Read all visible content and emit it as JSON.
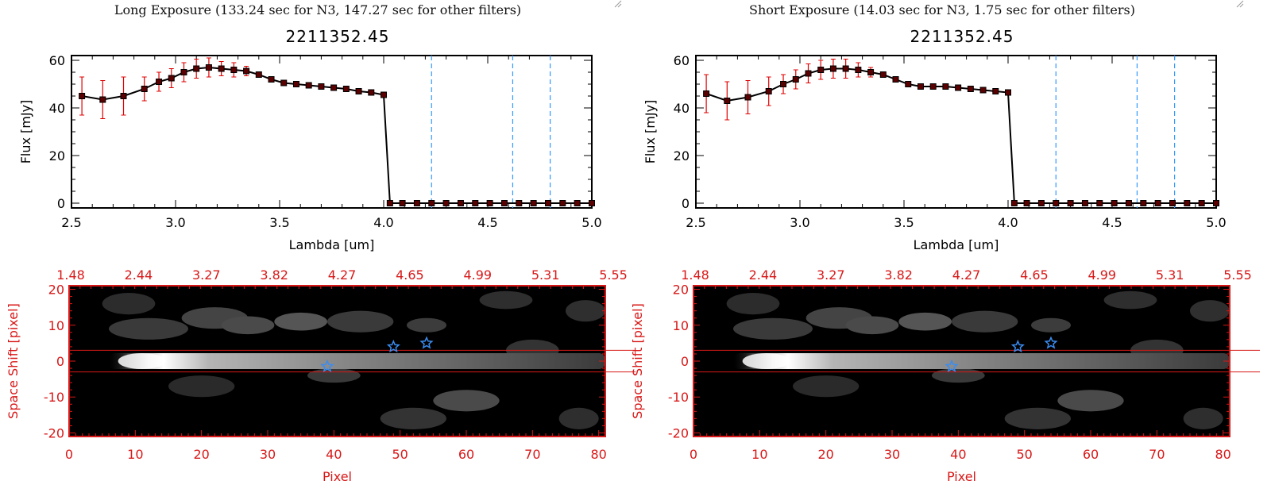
{
  "panels": [
    {
      "header": "Long Exposure (133.24 sec for N3, 147.27 sec for other filters)",
      "title": "2211352.45"
    },
    {
      "header": "Short Exposure (14.03 sec for N3, 1.75 sec for other filters)",
      "title": "2211352.45"
    }
  ],
  "colors": {
    "spectrum_line": "#000000",
    "error_bar": "#e00000",
    "marker": "#5a0000",
    "vline": "#3399ff",
    "image_axis": "#d81818",
    "star": "#3a8cf0"
  },
  "chart_data": [
    {
      "type": "line",
      "title": "2211352.45",
      "xlabel": "Lambda [um]",
      "ylabel": "Flux [mJy]",
      "xlim": [
        2.5,
        5.0
      ],
      "ylim": [
        -2,
        62
      ],
      "xticks": [
        "2.5",
        "3.0",
        "3.5",
        "4.0",
        "4.5",
        "5.0"
      ],
      "yticks": [
        "0",
        "20",
        "40",
        "60"
      ],
      "x": [
        2.55,
        2.65,
        2.75,
        2.85,
        2.92,
        2.98,
        3.04,
        3.1,
        3.16,
        3.22,
        3.28,
        3.34,
        3.4,
        3.46,
        3.52,
        3.58,
        3.64,
        3.7,
        3.76,
        3.82,
        3.88,
        3.94,
        4.0,
        4.03,
        4.09,
        4.16,
        4.23,
        4.3,
        4.37,
        4.44,
        4.51,
        4.58,
        4.65,
        4.72,
        4.79,
        4.86,
        4.93,
        5.0
      ],
      "y": [
        45,
        43.5,
        45,
        48,
        51,
        52.5,
        55,
        56.5,
        57,
        56.5,
        56,
        55.5,
        54,
        52,
        50.5,
        50,
        49.5,
        49,
        48.5,
        48,
        47,
        46.5,
        45.5,
        0,
        0,
        0,
        0,
        0,
        0,
        0,
        0,
        0,
        0,
        0,
        0,
        0,
        0,
        0
      ],
      "errors": [
        8,
        8,
        8,
        5,
        4,
        4,
        4,
        4,
        4,
        3,
        3,
        2,
        1,
        0,
        0,
        0,
        0,
        0,
        0,
        0,
        0,
        0,
        0,
        0,
        0,
        0,
        0,
        0,
        0,
        0,
        0,
        0,
        0,
        0,
        0,
        0,
        0,
        0
      ],
      "vlines": [
        4.23,
        4.62,
        4.8
      ],
      "image": {
        "xlabel": "Pixel",
        "ylabel": "Space Shift [pixel]",
        "xlim": [
          0,
          81
        ],
        "ylim": [
          -21,
          21
        ],
        "xticks": [
          "0",
          "10",
          "20",
          "30",
          "40",
          "50",
          "60",
          "70",
          "80"
        ],
        "yticks": [
          "-20",
          "-10",
          "0",
          "10",
          "20"
        ],
        "top_ticks": [
          "1.48",
          "2.44",
          "3.27",
          "3.82",
          "4.27",
          "4.65",
          "4.99",
          "5.31",
          "5.55"
        ],
        "aperture": [
          -3,
          3
        ],
        "stars": [
          {
            "x": 39,
            "y": -1.5
          },
          {
            "x": 49,
            "y": 4
          },
          {
            "x": 54,
            "y": 5
          }
        ]
      }
    },
    {
      "type": "line",
      "title": "2211352.45",
      "xlabel": "Lambda [um]",
      "ylabel": "Flux [mJy]",
      "xlim": [
        2.5,
        5.0
      ],
      "ylim": [
        -2,
        62
      ],
      "xticks": [
        "2.5",
        "3.0",
        "3.5",
        "4.0",
        "4.5",
        "5.0"
      ],
      "yticks": [
        "0",
        "20",
        "40",
        "60"
      ],
      "x": [
        2.55,
        2.65,
        2.75,
        2.85,
        2.92,
        2.98,
        3.04,
        3.1,
        3.16,
        3.22,
        3.28,
        3.34,
        3.4,
        3.46,
        3.52,
        3.58,
        3.64,
        3.7,
        3.76,
        3.82,
        3.88,
        3.94,
        4.0,
        4.03,
        4.09,
        4.16,
        4.23,
        4.3,
        4.37,
        4.44,
        4.51,
        4.58,
        4.65,
        4.72,
        4.79,
        4.86,
        4.93,
        5.0
      ],
      "y": [
        46,
        43,
        44.5,
        47,
        50,
        52,
        54.5,
        56,
        56.5,
        56.5,
        56,
        55,
        54,
        52,
        50,
        49,
        49,
        49,
        48.5,
        48,
        47.5,
        47,
        46.5,
        0,
        0,
        0,
        0,
        0,
        0,
        0,
        0,
        0,
        0,
        0,
        0,
        0,
        0,
        0
      ],
      "errors": [
        8,
        8,
        7,
        6,
        4,
        4,
        4,
        4,
        4,
        4,
        3,
        2,
        1,
        0,
        0,
        0,
        0,
        0,
        0,
        0,
        0,
        0,
        0,
        0,
        0,
        0,
        0,
        0,
        0,
        0,
        0,
        0,
        0,
        0,
        0,
        0,
        0,
        0
      ],
      "vlines": [
        4.23,
        4.62,
        4.8
      ],
      "image": {
        "xlabel": "Pixel",
        "ylabel": "Space Shift [pixel]",
        "xlim": [
          0,
          81
        ],
        "ylim": [
          -21,
          21
        ],
        "xticks": [
          "0",
          "10",
          "20",
          "30",
          "40",
          "50",
          "60",
          "70",
          "80"
        ],
        "yticks": [
          "-20",
          "-10",
          "0",
          "10",
          "20"
        ],
        "top_ticks": [
          "1.48",
          "2.44",
          "3.27",
          "3.82",
          "4.27",
          "4.65",
          "4.99",
          "5.31",
          "5.55"
        ],
        "aperture": [
          -3,
          3
        ],
        "stars": [
          {
            "x": 39,
            "y": -1.5
          },
          {
            "x": 49,
            "y": 4
          },
          {
            "x": 54,
            "y": 5
          }
        ]
      }
    }
  ]
}
